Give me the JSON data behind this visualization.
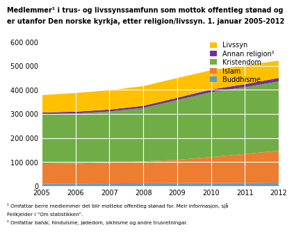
{
  "years": [
    2005,
    2006,
    2007,
    2008,
    2009,
    2010,
    2011,
    2012
  ],
  "Buddhisme": [
    10000,
    10500,
    11000,
    11500,
    12000,
    12500,
    13000,
    14000
  ],
  "Islam": [
    82000,
    83000,
    86000,
    91000,
    97000,
    108000,
    120000,
    133000
  ],
  "Kristendom": [
    207000,
    208000,
    213000,
    222000,
    248000,
    270000,
    278000,
    288000
  ],
  "Annan religion": [
    7000,
    7500,
    8000,
    9000,
    10000,
    11000,
    12500,
    14500
  ],
  "Livssyn": [
    72000,
    78000,
    80000,
    82000,
    82000,
    80000,
    78000,
    72000
  ],
  "colors": {
    "Buddhisme": "#5b9bd5",
    "Islam": "#ed7d31",
    "Kristendom": "#70ad47",
    "Annan religion": "#7030a0",
    "Livssyn": "#ffc000"
  },
  "title_line1": "Medlemmer¹ i trus- og livssynssamfunn som mottok offentleg stønad og",
  "title_line2": "er utanfor Den norske kyrkja, etter religion/livssyn. 1. januar 2005-2012",
  "ylim": [
    0,
    620000
  ],
  "yticks": [
    0,
    100000,
    200000,
    300000,
    400000,
    500000,
    600000
  ],
  "footnote1": "¹ Omfattar berre medlemmer det blir motteke offentleg stønad for. Meir informasjon, sjå",
  "footnote2": "Feilkjelder i “Om statistikken”.",
  "footnote3": "² Omfattar baháí, hinduisme, jødedom, sikhisme og andre trusretningar."
}
